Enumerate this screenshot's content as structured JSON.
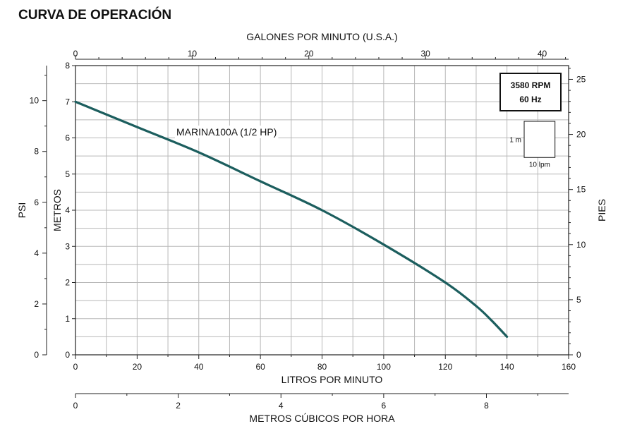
{
  "title": "CURVA DE OPERACIÓN",
  "chart_data": {
    "type": "line",
    "series": [
      {
        "name": "MARINA100A (1/2 HP)",
        "color": "#1c5e5e",
        "x_lpm": [
          0,
          20,
          40,
          60,
          80,
          100,
          120,
          130,
          135,
          140
        ],
        "y_m": [
          7.0,
          6.3,
          5.6,
          4.8,
          4.0,
          3.05,
          2.0,
          1.35,
          0.95,
          0.5
        ]
      }
    ],
    "axes": {
      "bottom": {
        "label": "LITROS POR MINUTO",
        "range": [
          0,
          160
        ],
        "ticks": [
          "0",
          "20",
          "40",
          "60",
          "80",
          "100",
          "120",
          "140",
          "160"
        ]
      },
      "top": {
        "label": "GALONES POR MINUTO (U.S.A.)",
        "ticks": [
          "0",
          "10",
          "20",
          "30",
          "40"
        ]
      },
      "left_inner": {
        "label": "METROS",
        "range": [
          0,
          8
        ],
        "ticks": [
          "0",
          "1",
          "2",
          "3",
          "4",
          "5",
          "6",
          "7",
          "8"
        ]
      },
      "left_outer": {
        "label": "PSI",
        "ticks": [
          "0",
          "2",
          "4",
          "6",
          "8",
          "10"
        ]
      },
      "right": {
        "label": "PIES",
        "ticks": [
          "0",
          "5",
          "10",
          "15",
          "20",
          "25"
        ]
      },
      "cubic": {
        "label": "METROS CÚBICOS POR HORA",
        "ticks": [
          "0",
          "2",
          "4",
          "6",
          "8"
        ]
      }
    },
    "grid": true,
    "badge": {
      "line1": "3580 RPM",
      "line2": "60 Hz"
    },
    "scale_key": {
      "vertical": "1 m",
      "horizontal": "10 lpm"
    }
  }
}
